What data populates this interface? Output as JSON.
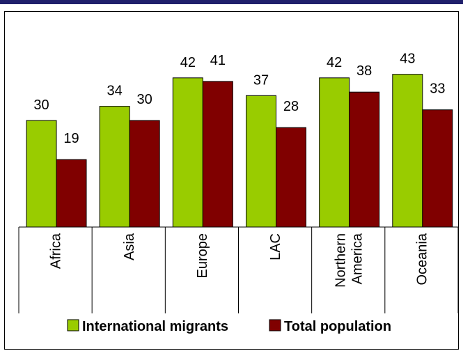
{
  "chart_data": {
    "type": "bar",
    "categories": [
      "Africa",
      "Asia",
      "Europe",
      "LAC",
      "Northern America",
      "Oceania"
    ],
    "category_lines": [
      [
        "Africa"
      ],
      [
        "Asia"
      ],
      [
        "Europe"
      ],
      [
        "LAC"
      ],
      [
        "Northern",
        "America"
      ],
      [
        "Oceania"
      ]
    ],
    "series": [
      {
        "name": "International migrants",
        "color": "#99cc00",
        "values": [
          30,
          34,
          42,
          37,
          42,
          43
        ]
      },
      {
        "name": "Total population",
        "color": "#800000",
        "values": [
          19,
          30,
          41,
          28,
          38,
          33
        ]
      }
    ],
    "ylim": [
      0,
      50
    ],
    "grid": false,
    "legend_position": "bottom"
  }
}
